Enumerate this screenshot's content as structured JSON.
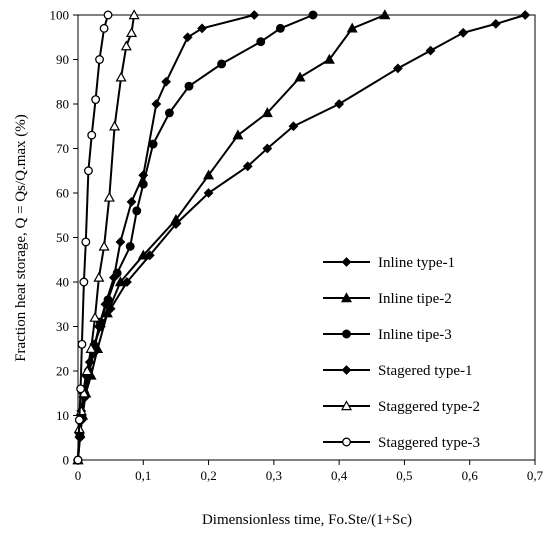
{
  "chart_data": {
    "type": "line",
    "title": "",
    "xlabel": "Dimensionless time, Fo.Ste/(1+Sc)",
    "ylabel": "Fraction  heat storage, Q = Qs/Q.max (%)",
    "xlim": [
      0,
      0.7
    ],
    "ylim": [
      0,
      100
    ],
    "xticks": [
      "0",
      "0,1",
      "0,2",
      "0,3",
      "0,4",
      "0,5",
      "0,6",
      "0,7"
    ],
    "yticks": [
      "0",
      "10",
      "20",
      "30",
      "40",
      "50",
      "60",
      "70",
      "80",
      "90",
      "100"
    ],
    "grid": false,
    "legend_position": "bottom-right",
    "series": [
      {
        "name": "Inline type-1",
        "marker": "diamond-filled",
        "x": [
          0,
          0.002,
          0.005,
          0.008,
          0.012,
          0.018,
          0.025,
          0.035,
          0.05,
          0.075,
          0.11,
          0.15,
          0.2,
          0.26,
          0.29,
          0.33,
          0.4,
          0.49,
          0.54,
          0.59,
          0.64,
          0.685
        ],
        "y": [
          0,
          6,
          11,
          15,
          19,
          22,
          26,
          30,
          34,
          40,
          46,
          53,
          60,
          66,
          70,
          75,
          80,
          88,
          92,
          96,
          98,
          100
        ]
      },
      {
        "name": "Inline tipe-2",
        "marker": "triangle-filled",
        "x": [
          0,
          0.003,
          0.007,
          0.012,
          0.02,
          0.03,
          0.045,
          0.065,
          0.1,
          0.15,
          0.2,
          0.245,
          0.29,
          0.34,
          0.385,
          0.42,
          0.47
        ],
        "y": [
          0,
          6,
          10,
          15,
          19,
          25,
          33,
          40,
          46,
          54,
          64,
          73,
          78,
          86,
          90,
          97,
          100
        ]
      },
      {
        "name": "Inline tipe-3",
        "marker": "circle-filled",
        "x": [
          0,
          0.003,
          0.006,
          0.01,
          0.016,
          0.024,
          0.034,
          0.046,
          0.06,
          0.08,
          0.09,
          0.1,
          0.115,
          0.14,
          0.17,
          0.22,
          0.28,
          0.31,
          0.36
        ],
        "y": [
          0,
          6,
          10,
          15,
          20,
          25,
          31,
          36,
          42,
          48,
          56,
          62,
          71,
          78,
          84,
          89,
          94,
          97,
          100
        ]
      },
      {
        "name": "Stagered type-1",
        "marker": "diamond-filled",
        "x": [
          0,
          0.003,
          0.006,
          0.01,
          0.016,
          0.024,
          0.032,
          0.042,
          0.055,
          0.065,
          0.082,
          0.1,
          0.12,
          0.135,
          0.168,
          0.19,
          0.27
        ],
        "y": [
          0,
          5,
          9,
          14,
          19,
          24,
          30,
          35,
          41,
          49,
          58,
          64,
          80,
          85,
          95,
          97,
          100
        ]
      },
      {
        "name": "Staggered type-2",
        "marker": "triangle-open",
        "x": [
          0,
          0.002,
          0.005,
          0.009,
          0.014,
          0.02,
          0.026,
          0.032,
          0.04,
          0.048,
          0.056,
          0.066,
          0.074,
          0.082,
          0.086
        ],
        "y": [
          0,
          7,
          11,
          15,
          20,
          25,
          32,
          41,
          48,
          59,
          75,
          86,
          93,
          96,
          100
        ]
      },
      {
        "name": "Staggered type-3",
        "marker": "circle-open",
        "x": [
          0,
          0.002,
          0.004,
          0.006,
          0.009,
          0.012,
          0.016,
          0.021,
          0.027,
          0.033,
          0.04,
          0.046
        ],
        "y": [
          0,
          9,
          16,
          26,
          40,
          49,
          65,
          73,
          81,
          90,
          97,
          100
        ]
      }
    ]
  }
}
